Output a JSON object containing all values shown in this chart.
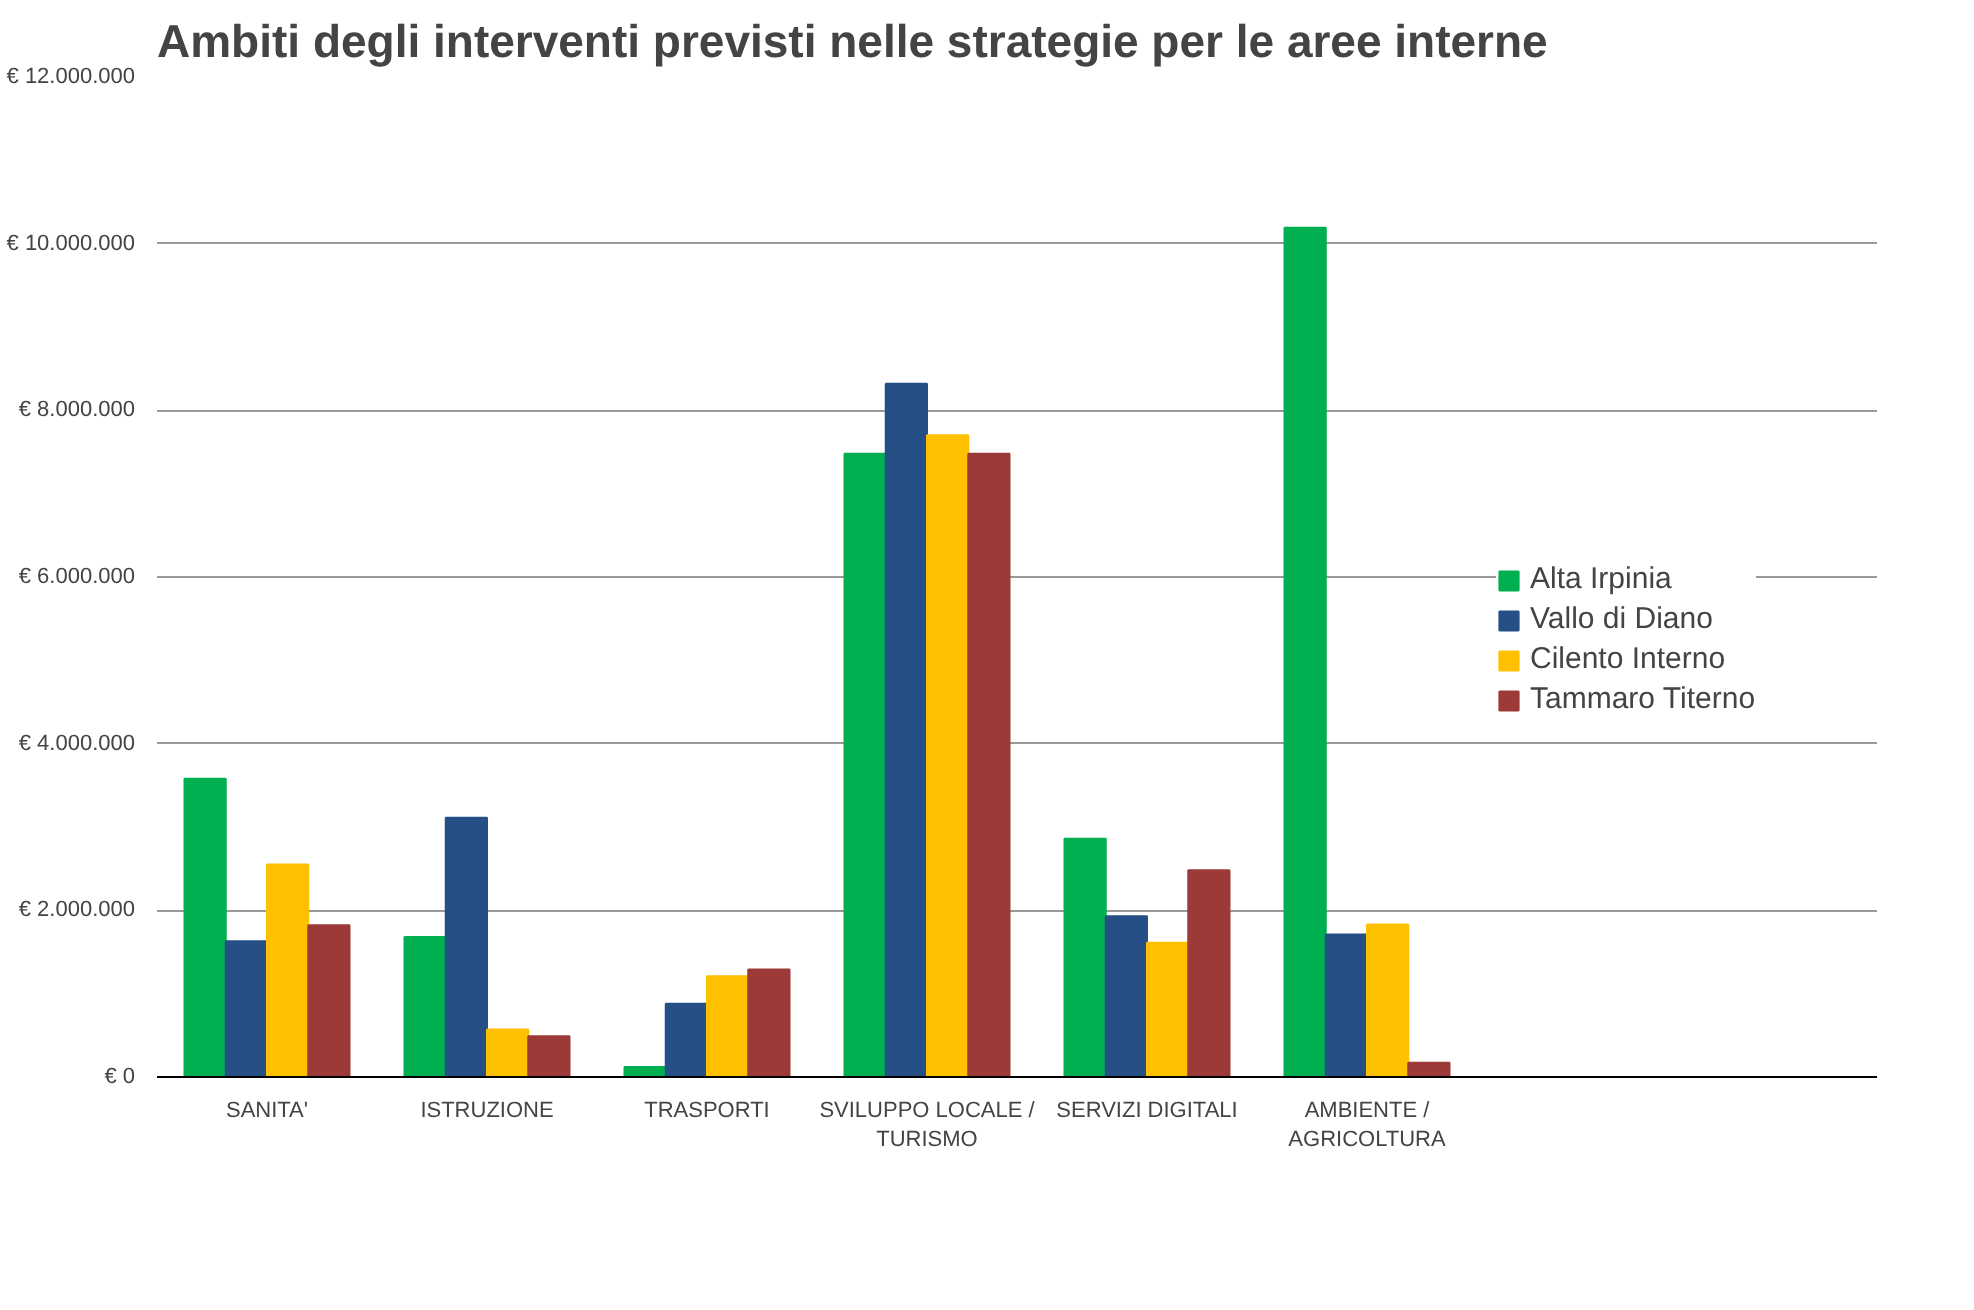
{
  "chart_data": {
    "type": "bar",
    "title": "Ambiti degli interventi previsti nelle strategie per le aree interne",
    "categories": [
      "SANITA'",
      "ISTRUZIONE",
      "TRASPORTI",
      "SVILUPPO LOCALE /\nTURISMO",
      "SERVIZI DIGITALI",
      "AMBIENTE /\nAGRICOLTURA"
    ],
    "series": [
      {
        "name": "Alta Irpinia",
        "color": "#00b050",
        "values": [
          3580000,
          1680000,
          120000,
          7480000,
          2860000,
          10190000
        ]
      },
      {
        "name": "Vallo di Diano",
        "color": "#264f86",
        "values": [
          1630000,
          3110000,
          880000,
          8320000,
          1930000,
          1710000
        ]
      },
      {
        "name": "Cilento Interno",
        "color": "#ffc000",
        "values": [
          2550000,
          570000,
          1210000,
          7700000,
          1610000,
          1830000
        ]
      },
      {
        "name": "Tammaro Titerno",
        "color": "#9c3a38",
        "values": [
          1820000,
          490000,
          1290000,
          7480000,
          2480000,
          170000
        ]
      }
    ],
    "ylim": [
      0,
      12000000
    ],
    "yticks": [
      {
        "value": 0,
        "label": "€ 0"
      },
      {
        "value": 2000000,
        "label": "€ 2.000.000"
      },
      {
        "value": 4000000,
        "label": "€ 4.000.000"
      },
      {
        "value": 6000000,
        "label": "€ 6.000.000"
      },
      {
        "value": 8000000,
        "label": "€ 8.000.000"
      },
      {
        "value": 10000000,
        "label": "€ 10.000.000"
      },
      {
        "value": 12000000,
        "label": "€ 12.000.000"
      }
    ],
    "grid": "y",
    "legend": "right"
  }
}
